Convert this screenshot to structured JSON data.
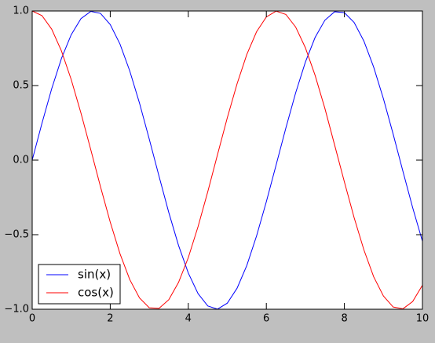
{
  "chart_data": {
    "type": "line",
    "x": [
      0,
      0.25,
      0.5,
      0.75,
      1,
      1.25,
      1.5,
      1.75,
      2,
      2.25,
      2.5,
      2.75,
      3,
      3.25,
      3.5,
      3.75,
      4,
      4.25,
      4.5,
      4.75,
      5,
      5.25,
      5.5,
      5.75,
      6,
      6.25,
      6.5,
      6.75,
      7,
      7.25,
      7.5,
      7.75,
      8,
      8.25,
      8.5,
      8.75,
      9,
      9.25,
      9.5,
      9.75,
      10
    ],
    "series": [
      {
        "name": "sin(x)",
        "color": "#0000ff",
        "values": [
          0,
          0.247,
          0.479,
          0.682,
          0.841,
          0.949,
          0.997,
          0.984,
          0.909,
          0.778,
          0.598,
          0.382,
          0.141,
          -0.108,
          -0.351,
          -0.572,
          -0.757,
          -0.895,
          -0.978,
          -0.999,
          -0.959,
          -0.859,
          -0.706,
          -0.508,
          -0.279,
          -0.033,
          0.215,
          0.45,
          0.657,
          0.823,
          0.938,
          0.995,
          0.989,
          0.923,
          0.798,
          0.624,
          0.412,
          0.174,
          -0.075,
          -0.319,
          -0.544
        ]
      },
      {
        "name": "cos(x)",
        "color": "#ff0000",
        "values": [
          1,
          0.969,
          0.878,
          0.732,
          0.54,
          0.315,
          0.071,
          -0.178,
          -0.416,
          -0.628,
          -0.801,
          -0.924,
          -0.99,
          -0.994,
          -0.936,
          -0.82,
          -0.654,
          -0.446,
          -0.211,
          0.038,
          0.284,
          0.512,
          0.709,
          0.861,
          0.96,
          0.999,
          0.977,
          0.893,
          0.754,
          0.568,
          0.347,
          0.101,
          -0.146,
          -0.386,
          -0.602,
          -0.782,
          -0.911,
          -0.985,
          -0.997,
          -0.948,
          -0.839
        ]
      }
    ],
    "xlim": [
      0,
      10
    ],
    "xticks": [
      0,
      2,
      4,
      6,
      8,
      10
    ],
    "ylim": [
      -1,
      1
    ],
    "yticks": [
      {
        "value": -1,
        "label": "−1.0"
      },
      {
        "value": -0.5,
        "label": "−0.5"
      },
      {
        "value": 0,
        "label": "0.0"
      },
      {
        "value": 0.5,
        "label": "0.5"
      },
      {
        "value": 1,
        "label": "1.0"
      }
    ],
    "legend": "lower left"
  }
}
